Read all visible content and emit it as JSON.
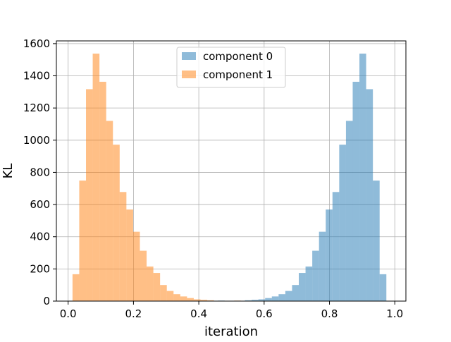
{
  "chart_data": {
    "type": "histogram",
    "title": "",
    "xlabel": "iteration",
    "ylabel": "KL",
    "xlim": [
      -0.036,
      1.034
    ],
    "ylim": [
      0,
      1617
    ],
    "xticks": [
      0.0,
      0.2,
      0.4,
      0.6,
      0.8,
      1.0
    ],
    "xtick_labels": [
      "0.0",
      "0.2",
      "0.4",
      "0.6",
      "0.8",
      "1.0"
    ],
    "yticks": [
      0,
      200,
      400,
      600,
      800,
      1000,
      1200,
      1400,
      1600
    ],
    "ytick_labels": [
      "0",
      "200",
      "400",
      "600",
      "800",
      "1000",
      "1200",
      "1400",
      "1600"
    ],
    "grid": true,
    "legend_position": "top-center",
    "series": [
      {
        "name": "component 0",
        "color": "#1f77b4",
        "alpha": 0.5,
        "bin_start": 0.4587,
        "bin_width": 0.02062,
        "counts": [
          3,
          0,
          0,
          1,
          5,
          8,
          11,
          19,
          29,
          43,
          63,
          100,
          175,
          215,
          313,
          431,
          569,
          678,
          972,
          1120,
          1363,
          1538,
          1317,
          749,
          167
        ]
      },
      {
        "name": "component 1",
        "color": "#ff7f0e",
        "alpha": 0.5,
        "bin_start": 0.0134,
        "bin_width": 0.02062,
        "counts": [
          167,
          749,
          1317,
          1538,
          1363,
          1120,
          972,
          678,
          569,
          431,
          313,
          215,
          175,
          100,
          63,
          43,
          29,
          19,
          11,
          8,
          5,
          1,
          0,
          0,
          3
        ]
      }
    ]
  }
}
